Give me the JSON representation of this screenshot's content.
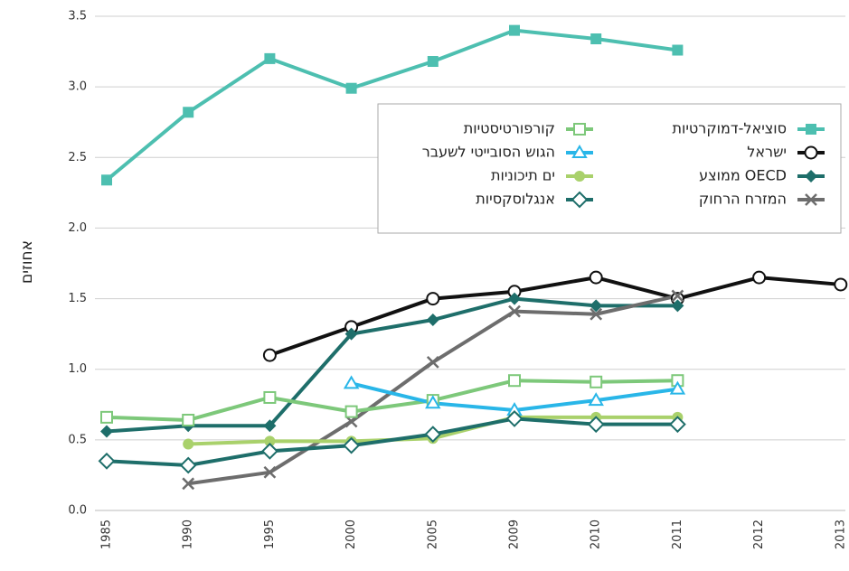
{
  "chart_data": {
    "type": "line",
    "y_label": "אחוזים",
    "categories": [
      "1985",
      "1990",
      "1995",
      "2000",
      "2005",
      "2009",
      "2010",
      "2011",
      "2012",
      "2013"
    ],
    "ylim": [
      0,
      3.5
    ],
    "yticks": [
      {
        "value": 0,
        "label": "0.0"
      },
      0.5,
      {
        "value": 1,
        "label": "1.0"
      },
      1.5,
      {
        "value": 2,
        "label": "2.0"
      },
      2.5,
      {
        "value": 3,
        "label": "3.0"
      },
      3.5
    ],
    "grid": true,
    "series": [
      {
        "name": "סוציאל-דמוקרטיות",
        "color": "#4dbfb0",
        "marker": "square-filled",
        "values": [
          2.34,
          2.82,
          3.2,
          2.99,
          3.18,
          3.4,
          3.34,
          3.26,
          null,
          null
        ]
      },
      {
        "name": "ישראל",
        "color": "#111111",
        "marker": "circle-open",
        "values": [
          null,
          null,
          1.1,
          1.3,
          1.5,
          1.55,
          1.65,
          1.5,
          1.65,
          1.6
        ]
      },
      {
        "name": "ממוצע OECD",
        "color": "#1e6e6a",
        "marker": "diamond-filled",
        "values": [
          0.56,
          0.6,
          0.6,
          1.25,
          1.35,
          1.5,
          1.45,
          1.45,
          null,
          null
        ]
      },
      {
        "name": "המזרח הרחוק",
        "color": "#6d6d6d",
        "marker": "x",
        "values": [
          null,
          0.19,
          0.27,
          0.63,
          1.05,
          1.41,
          1.39,
          1.52,
          null,
          null
        ]
      },
      {
        "name": "קורפורטיסטיות",
        "color": "#7dc87a",
        "marker": "square-open",
        "values": [
          0.66,
          0.64,
          0.8,
          0.7,
          0.78,
          0.92,
          0.91,
          0.92,
          null,
          null
        ]
      },
      {
        "name": "הגוש הסובייטי לשעבר",
        "color": "#29b6e8",
        "marker": "triangle-open",
        "values": [
          null,
          null,
          null,
          0.9,
          0.76,
          0.71,
          0.78,
          0.86,
          null,
          null
        ]
      },
      {
        "name": "ים תיכוניות",
        "color": "#a9d16b",
        "marker": "circle-filled",
        "values": [
          null,
          0.47,
          0.49,
          0.49,
          0.51,
          0.66,
          0.66,
          0.66,
          null,
          null
        ]
      },
      {
        "name": "אנגלוסקסיות",
        "color": "#1e6e6a",
        "marker": "diamond-open",
        "values": [
          0.35,
          0.32,
          0.42,
          0.46,
          0.54,
          0.65,
          0.61,
          0.61,
          null,
          null
        ]
      }
    ]
  }
}
